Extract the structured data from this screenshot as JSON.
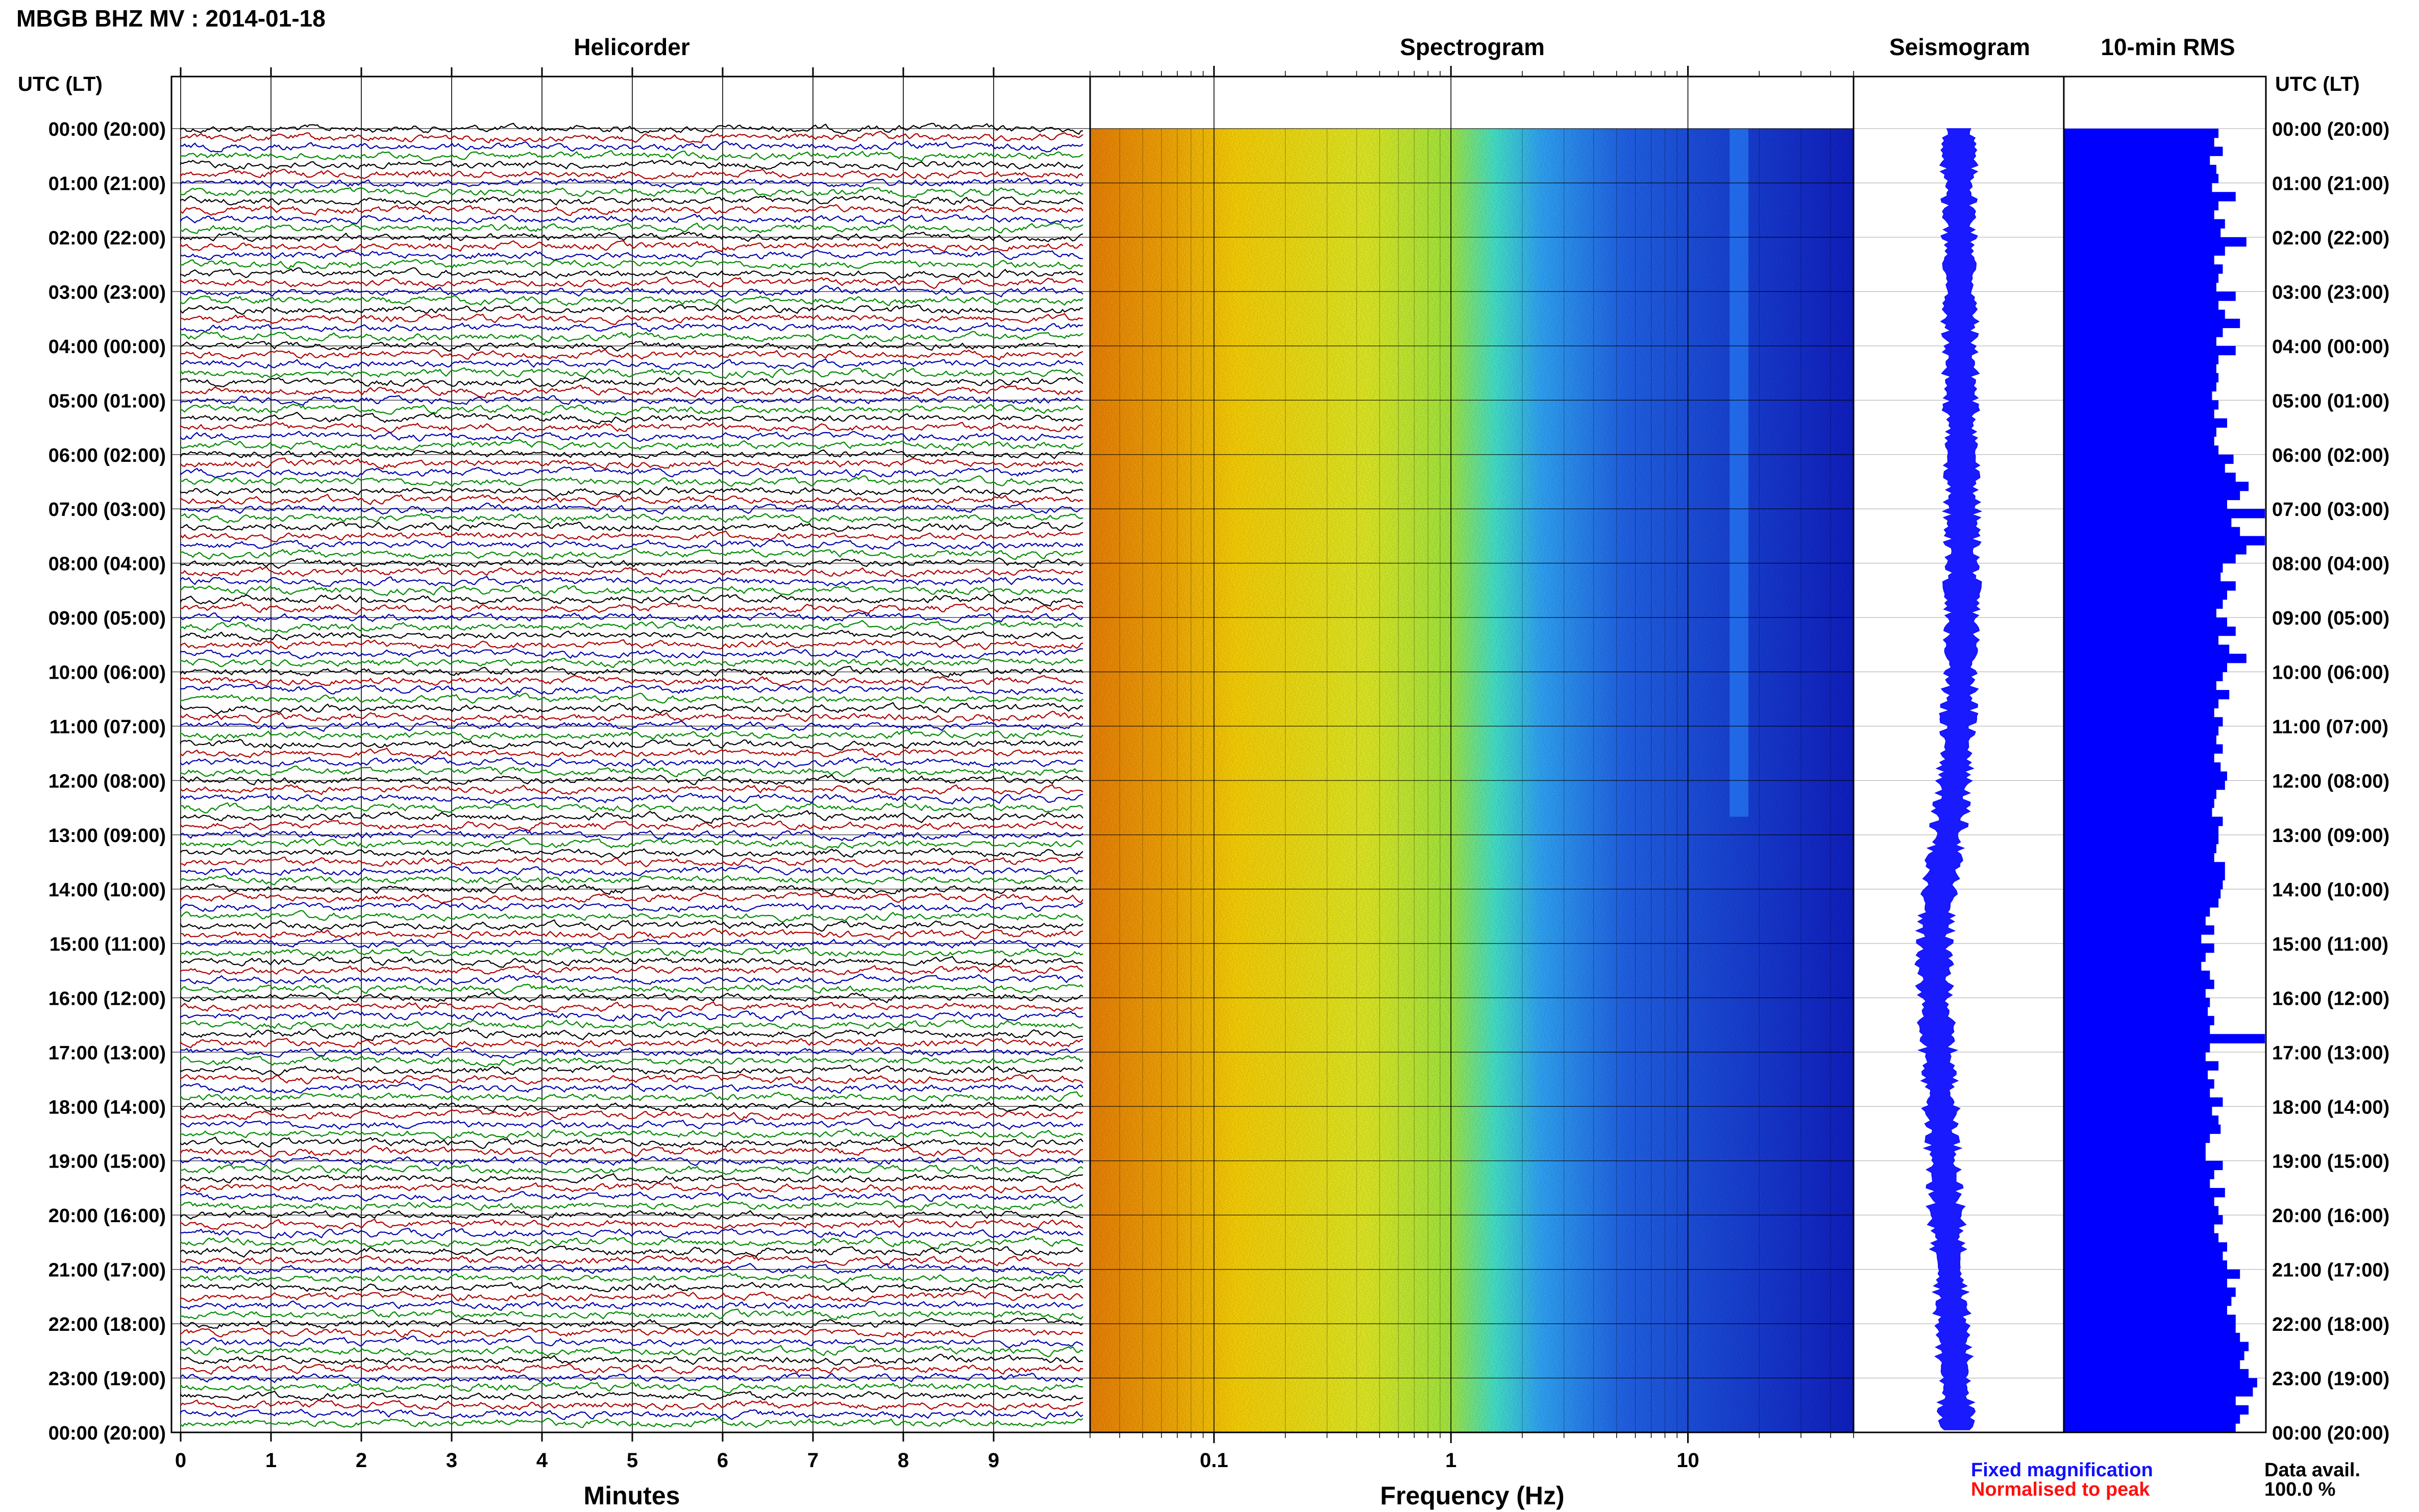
{
  "page_title": "MBGB BHZ MV : 2014-01-18",
  "utc_lt_label": "UTC (LT)",
  "hour_labels": [
    "00:00 (20:00)",
    "01:00 (21:00)",
    "02:00 (22:00)",
    "03:00 (23:00)",
    "04:00 (00:00)",
    "05:00 (01:00)",
    "06:00 (02:00)",
    "07:00 (03:00)",
    "08:00 (04:00)",
    "09:00 (05:00)",
    "10:00 (06:00)",
    "11:00 (07:00)",
    "12:00 (08:00)",
    "13:00 (09:00)",
    "14:00 (10:00)",
    "15:00 (11:00)",
    "16:00 (12:00)",
    "17:00 (13:00)",
    "18:00 (14:00)",
    "19:00 (15:00)",
    "20:00 (16:00)",
    "21:00 (17:00)",
    "22:00 (18:00)",
    "23:00 (19:00)",
    "00:00 (20:00)"
  ],
  "legend": {
    "fixed": "Fixed magnification",
    "normalised": "Normalised to peak",
    "fixed_color": "#1010ff",
    "normalised_color": "#ff1010"
  },
  "data_avail": {
    "label": "Data avail.",
    "value": "100.0 %"
  },
  "chart_data": [
    {
      "type": "line",
      "title": "Helicorder",
      "xlabel": "Minutes",
      "ylabel": "",
      "x_ticks": [
        "0",
        "1",
        "2",
        "3",
        "4",
        "5",
        "6",
        "7",
        "8",
        "9"
      ],
      "xlim": [
        0,
        10
      ],
      "trace_count": 144,
      "trace_colors": [
        "#000000",
        "#b00000",
        "#0000b0",
        "#008a00"
      ]
    },
    {
      "type": "heatmap",
      "title": "Spectrogram",
      "xlabel": "Frequency (Hz)",
      "x_scale": "log",
      "x_ticks": [
        "0.1",
        "1",
        "10"
      ],
      "xlim": [
        0.03,
        50
      ],
      "colormap": [
        "#f08000",
        "#ffd400",
        "#c8f020",
        "#40e8d0",
        "#2090ff",
        "#0818c8"
      ],
      "notable_features": [
        {
          "freq_range": [
            15,
            18
          ],
          "time_range": [
            "00:00",
            "12:40"
          ],
          "description": ""
        }
      ]
    },
    {
      "type": "line",
      "title": "Seismogram",
      "xlabel": "",
      "color": "#1010ff"
    },
    {
      "type": "bar",
      "title": "10-min RMS",
      "xlabel": "",
      "orientation": "horizontal",
      "color": "#0000ff",
      "values": [
        0.72,
        0.7,
        0.74,
        0.68,
        0.71,
        0.72,
        0.69,
        0.8,
        0.72,
        0.7,
        0.75,
        0.73,
        0.85,
        0.75,
        0.7,
        0.74,
        0.72,
        0.71,
        0.8,
        0.72,
        0.75,
        0.82,
        0.74,
        0.71,
        0.8,
        0.72,
        0.71,
        0.72,
        0.71,
        0.69,
        0.72,
        0.7,
        0.76,
        0.71,
        0.7,
        0.72,
        0.79,
        0.75,
        0.8,
        0.86,
        0.82,
        0.76,
        1.0,
        0.78,
        0.82,
        0.94,
        0.85,
        0.8,
        0.74,
        0.73,
        0.8,
        0.76,
        0.74,
        0.71,
        0.76,
        0.8,
        0.72,
        0.77,
        0.85,
        0.76,
        0.74,
        0.71,
        0.77,
        0.72,
        0.7,
        0.74,
        0.72,
        0.71,
        0.74,
        0.7,
        0.73,
        0.76,
        0.75,
        0.71,
        0.7,
        0.69,
        0.74,
        0.72,
        0.72,
        0.71,
        0.7,
        0.75,
        0.75,
        0.74,
        0.73,
        0.72,
        0.68,
        0.66,
        0.7,
        0.64,
        0.7,
        0.66,
        0.64,
        0.68,
        0.7,
        0.66,
        0.68,
        0.67,
        0.7,
        0.68,
        0.98,
        0.68,
        0.66,
        0.72,
        0.67,
        0.7,
        0.68,
        0.74,
        0.69,
        0.72,
        0.73,
        0.68,
        0.66,
        0.66,
        0.74,
        0.7,
        0.68,
        0.75,
        0.7,
        0.72,
        0.74,
        0.7,
        0.72,
        0.76,
        0.74,
        0.76,
        0.82,
        0.76,
        0.8,
        0.78,
        0.76,
        0.8,
        0.8,
        0.82,
        0.86,
        0.84,
        0.82,
        0.86,
        0.9,
        0.88,
        0.8,
        0.86,
        0.82,
        0.8
      ]
    }
  ]
}
